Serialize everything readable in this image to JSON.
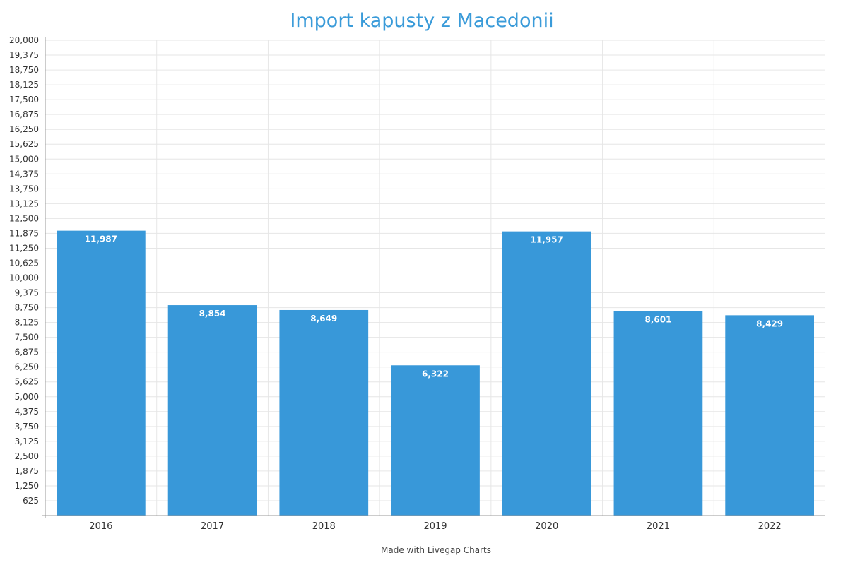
{
  "chart_data": {
    "type": "bar",
    "title": "Import kapusty z Macedonii",
    "categories": [
      "2016",
      "2017",
      "2018",
      "2019",
      "2020",
      "2021",
      "2022"
    ],
    "values": [
      11987,
      8854,
      8649,
      6322,
      11957,
      8601,
      8429
    ],
    "data_labels": [
      "11,987",
      "8,854",
      "8,649",
      "6,322",
      "11,957",
      "8,601",
      "8,429"
    ],
    "ylim": [
      0,
      20000
    ],
    "y_ticks": [
      625,
      1250,
      1875,
      2500,
      3125,
      3750,
      4375,
      5000,
      5625,
      6250,
      6875,
      7500,
      8125,
      8750,
      9375,
      10000,
      10625,
      11250,
      11875,
      12500,
      13125,
      13750,
      14375,
      15000,
      15625,
      16250,
      16875,
      17500,
      18125,
      18750,
      19375,
      20000
    ],
    "y_tick_labels": [
      "625",
      "1,250",
      "1,875",
      "2,500",
      "3,125",
      "3,750",
      "4,375",
      "5,000",
      "5,625",
      "6,250",
      "6,875",
      "7,500",
      "8,125",
      "8,750",
      "9,375",
      "10,000",
      "10,625",
      "11,250",
      "11,875",
      "12,500",
      "13,125",
      "13,750",
      "14,375",
      "15,000",
      "15,625",
      "16,250",
      "16,875",
      "17,500",
      "18,125",
      "18,750",
      "19,375",
      "20,000"
    ],
    "xlabel": "",
    "ylabel": "",
    "grid": true,
    "legend": "none",
    "bar_color": "#3898d9"
  },
  "footer": {
    "credit": "Made with Livegap Charts"
  }
}
